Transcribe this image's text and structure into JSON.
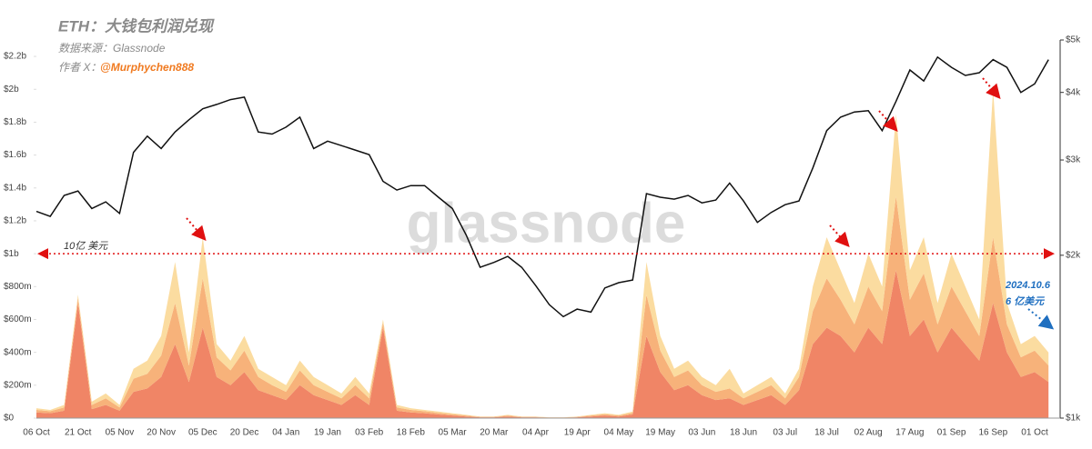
{
  "chart_data": {
    "type": "area",
    "title": "ETH：大钱包利润兑现",
    "subtitle": "数据来源：Glassnode",
    "author_prefix": "作者 X：",
    "author": "@Murphychen888",
    "watermark": "glassnode",
    "categories": [
      "06 Oct",
      null,
      null,
      "21 Oct",
      null,
      null,
      "05 Nov",
      null,
      null,
      "20 Nov",
      null,
      null,
      "05 Dec",
      null,
      null,
      "20 Dec",
      null,
      null,
      "04 Jan",
      null,
      null,
      "19 Jan",
      null,
      null,
      "03 Feb",
      null,
      null,
      "18 Feb",
      null,
      null,
      "05 Mar",
      null,
      null,
      "20 Mar",
      null,
      null,
      "04 Apr",
      null,
      null,
      "19 Apr",
      null,
      null,
      "04 May",
      null,
      null,
      "19 May",
      null,
      null,
      "03 Jun",
      null,
      null,
      "18 Jun",
      null,
      null,
      "03 Jul",
      null,
      null,
      "18 Jul",
      null,
      null,
      "02 Aug",
      null,
      null,
      "17 Aug",
      null,
      null,
      "01 Sep",
      null,
      null,
      "16 Sep",
      null,
      null,
      "01 Oct",
      null
    ],
    "series": [
      {
        "color": "#f08566",
        "values": [
          35,
          30,
          45,
          700,
          55,
          80,
          45,
          160,
          180,
          250,
          450,
          220,
          550,
          250,
          200,
          280,
          170,
          140,
          110,
          200,
          140,
          110,
          80,
          140,
          80,
          550,
          45,
          35,
          30,
          22,
          16,
          10,
          5,
          5,
          10,
          5,
          5,
          3,
          3,
          5,
          10,
          16,
          10,
          22,
          500,
          280,
          170,
          200,
          140,
          110,
          120,
          80,
          110,
          140,
          80,
          170,
          450,
          550,
          500,
          400,
          550,
          450,
          900,
          500,
          600,
          400,
          550,
          450,
          350,
          700,
          400,
          250,
          280,
          220
        ]
      },
      {
        "color": "#f7b27a",
        "values": [
          15,
          12,
          20,
          30,
          25,
          40,
          20,
          80,
          90,
          130,
          250,
          100,
          300,
          120,
          90,
          130,
          80,
          60,
          50,
          90,
          60,
          50,
          40,
          60,
          40,
          30,
          20,
          15,
          12,
          10,
          8,
          6,
          3,
          3,
          6,
          3,
          3,
          1,
          1,
          3,
          6,
          8,
          6,
          10,
          250,
          130,
          80,
          90,
          60,
          50,
          60,
          40,
          50,
          60,
          40,
          80,
          200,
          300,
          220,
          170,
          250,
          200,
          450,
          220,
          280,
          170,
          250,
          200,
          150,
          400,
          170,
          120,
          130,
          100
        ]
      },
      {
        "color": "#fbdca0",
        "values": [
          10,
          8,
          15,
          20,
          20,
          30,
          15,
          60,
          80,
          120,
          250,
          80,
          250,
          80,
          60,
          90,
          50,
          50,
          40,
          60,
          50,
          40,
          30,
          50,
          30,
          20,
          15,
          10,
          8,
          8,
          6,
          4,
          2,
          2,
          4,
          2,
          2,
          1,
          1,
          2,
          4,
          6,
          4,
          8,
          200,
          90,
          50,
          60,
          50,
          40,
          120,
          30,
          40,
          50,
          30,
          50,
          150,
          250,
          180,
          130,
          200,
          150,
          500,
          180,
          220,
          130,
          200,
          150,
          100,
          900,
          130,
          80,
          90,
          80
        ]
      },
      {
        "color": "#111111",
        "type": "line",
        "axis": "y2",
        "values": [
          2410,
          2360,
          2580,
          2630,
          2440,
          2510,
          2390,
          3100,
          3320,
          3150,
          3380,
          3560,
          3730,
          3800,
          3880,
          3920,
          3380,
          3350,
          3450,
          3600,
          3150,
          3250,
          3190,
          3130,
          3070,
          2740,
          2640,
          2690,
          2690,
          2560,
          2440,
          2180,
          1900,
          1940,
          1990,
          1900,
          1760,
          1620,
          1540,
          1590,
          1570,
          1740,
          1780,
          1800,
          2600,
          2560,
          2540,
          2580,
          2500,
          2530,
          2720,
          2520,
          2300,
          2400,
          2480,
          2520,
          2900,
          3400,
          3600,
          3680,
          3700,
          3400,
          3850,
          4400,
          4200,
          4650,
          4450,
          4300,
          4350,
          4600,
          4450,
          4000,
          4150,
          4600
        ]
      }
    ],
    "ylim": [
      0,
      2300
    ],
    "yticks": [
      {
        "value": 0,
        "label": "$0"
      },
      {
        "value": 200,
        "label": "$200m"
      },
      {
        "value": 400,
        "label": "$400m"
      },
      {
        "value": 600,
        "label": "$600m"
      },
      {
        "value": 800,
        "label": "$800m"
      },
      {
        "value": 1000,
        "label": "$1b"
      },
      {
        "value": 1200,
        "label": "$1.2b"
      },
      {
        "value": 1400,
        "label": "$1.4b"
      },
      {
        "value": 1600,
        "label": "$1.6b"
      },
      {
        "value": 1800,
        "label": "$1.8b"
      },
      {
        "value": 2000,
        "label": "$2b"
      },
      {
        "value": 2200,
        "label": "$2.2b"
      }
    ],
    "y2lim": [
      1000,
      5000
    ],
    "y2log": true,
    "y2ticks": [
      {
        "value": 1000,
        "label": "$1k"
      },
      {
        "value": 2000,
        "label": "$2k"
      },
      {
        "value": 3000,
        "label": "$3k"
      },
      {
        "value": 4000,
        "label": "$4k"
      },
      {
        "value": 5000,
        "label": "$5k"
      }
    ],
    "reference_line": {
      "value": 1000,
      "label": "10亿 美元",
      "color": "#e01010"
    },
    "annotations": [
      "2024.10.6",
      "6 亿美元"
    ],
    "grid": false
  }
}
